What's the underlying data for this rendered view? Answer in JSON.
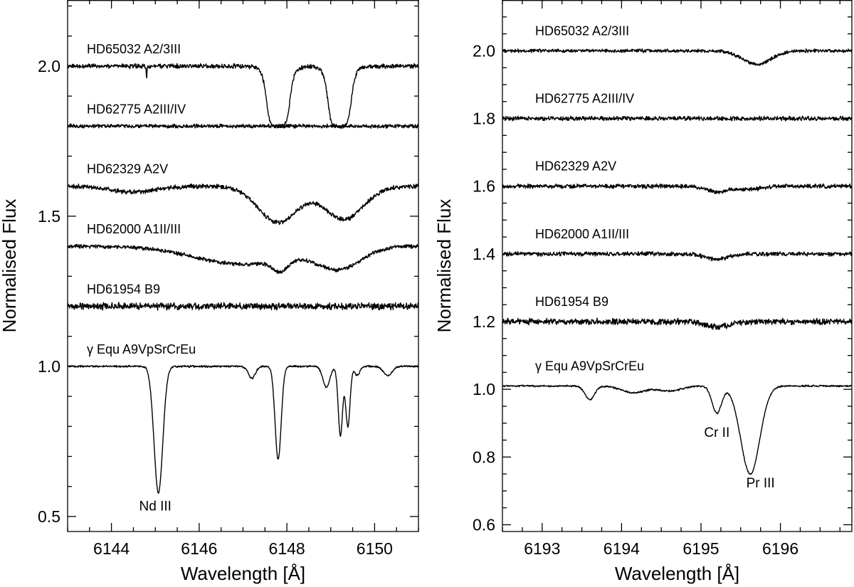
{
  "chart_data": [
    {
      "type": "line",
      "xlabel": "Wavelength [Å]",
      "ylabel": "Normalised Flux",
      "xlim": [
        6143.0,
        6151.0
      ],
      "ylim": [
        0.45,
        2.22
      ],
      "x_ticks_major": [
        6144,
        6146,
        6148,
        6150
      ],
      "x_ticks_minor_step": 0.5,
      "y_ticks_major": [
        0.5,
        1.0,
        1.5,
        2.0
      ],
      "y_ticks_minor_step": 0.1,
      "grid": false,
      "noise_level": 0.005,
      "series": [
        {
          "name": "HD65032 A2/3III",
          "offset": 2.0,
          "noise": 0.006,
          "slope": 0.0,
          "lines": [
            {
              "center": 6147.8,
              "depth": 0.2,
              "width": 0.28,
              "shape": "box"
            },
            {
              "center": 6149.2,
              "depth": 0.2,
              "width": 0.28,
              "shape": "box"
            },
            {
              "center": 6144.8,
              "depth": 0.04,
              "width": 0.01,
              "shape": "gauss"
            }
          ]
        },
        {
          "name": "HD62775 A2III/IV",
          "offset": 1.8,
          "noise": 0.005,
          "slope": 0.0,
          "lines": []
        },
        {
          "name": "HD62329 A2V",
          "offset": 1.6,
          "noise": 0.006,
          "slope": 0.0,
          "lines": [
            {
              "center": 6144.5,
              "depth": 0.02,
              "width": 0.5,
              "shape": "gauss"
            },
            {
              "center": 6147.8,
              "depth": 0.12,
              "width": 0.45,
              "shape": "gauss"
            },
            {
              "center": 6149.3,
              "depth": 0.11,
              "width": 0.45,
              "shape": "gauss"
            }
          ]
        },
        {
          "name": "HD62000 A1II/III",
          "offset": 1.4,
          "noise": 0.005,
          "slope": 0.0,
          "lines": [
            {
              "center": 6147.0,
              "depth": 0.06,
              "width": 1.1,
              "shape": "gauss"
            },
            {
              "center": 6147.85,
              "depth": 0.04,
              "width": 0.18,
              "shape": "gauss"
            },
            {
              "center": 6149.2,
              "depth": 0.07,
              "width": 0.5,
              "shape": "gauss"
            }
          ]
        },
        {
          "name": "HD61954 B9",
          "offset": 1.2,
          "noise": 0.009,
          "slope": 0.0,
          "lines": []
        },
        {
          "name": "γ Equ A9VpSrCrEu",
          "offset": 1.0,
          "noise": 0.0025,
          "slope": 0.0,
          "lines": [
            {
              "center": 6145.07,
              "depth": 0.42,
              "width": 0.1,
              "shape": "gauss"
            },
            {
              "center": 6147.2,
              "depth": 0.04,
              "width": 0.08,
              "shape": "gauss"
            },
            {
              "center": 6147.8,
              "depth": 0.31,
              "width": 0.07,
              "shape": "gauss"
            },
            {
              "center": 6148.9,
              "depth": 0.07,
              "width": 0.08,
              "shape": "gauss"
            },
            {
              "center": 6149.22,
              "depth": 0.23,
              "width": 0.05,
              "shape": "gauss"
            },
            {
              "center": 6149.39,
              "depth": 0.2,
              "width": 0.05,
              "shape": "gauss"
            },
            {
              "center": 6149.6,
              "depth": 0.03,
              "width": 0.06,
              "shape": "gauss"
            },
            {
              "center": 6150.3,
              "depth": 0.03,
              "width": 0.1,
              "shape": "gauss"
            }
          ]
        }
      ],
      "annotations": [
        {
          "text": "Nd III",
          "x": 6145.0,
          "y": 0.52
        }
      ]
    },
    {
      "type": "line",
      "xlabel": "Wavelength [Å]",
      "ylabel": "Normalised Flux",
      "xlim": [
        6192.5,
        6196.9
      ],
      "ylim": [
        0.58,
        2.15
      ],
      "x_ticks_major": [
        6193,
        6194,
        6195,
        6196
      ],
      "x_ticks_minor_step": 0.25,
      "y_ticks_major": [
        0.6,
        0.8,
        1.0,
        1.2,
        1.4,
        1.6,
        1.8,
        2.0
      ],
      "y_ticks_minor_step": 0.05,
      "grid": false,
      "noise_level": 0.005,
      "series": [
        {
          "name": "HD65032 A2/3III",
          "offset": 2.0,
          "noise": 0.004,
          "slope": 0.0,
          "lines": [
            {
              "center": 6195.7,
              "depth": 0.04,
              "width": 0.18,
              "shape": "gauss"
            }
          ]
        },
        {
          "name": "HD62775 A2III/IV",
          "offset": 1.8,
          "noise": 0.005,
          "slope": 0.0,
          "lines": []
        },
        {
          "name": "HD62329 A2V",
          "offset": 1.6,
          "noise": 0.005,
          "slope": 0.0,
          "lines": [
            {
              "center": 6195.2,
              "depth": 0.015,
              "width": 0.15,
              "shape": "gauss"
            },
            {
              "center": 6195.6,
              "depth": 0.01,
              "width": 0.15,
              "shape": "gauss"
            }
          ]
        },
        {
          "name": "HD62000 A1II/III",
          "offset": 1.4,
          "noise": 0.005,
          "slope": 0.0,
          "lines": [
            {
              "center": 6195.2,
              "depth": 0.015,
              "width": 0.15,
              "shape": "gauss"
            }
          ]
        },
        {
          "name": "HD61954 B9",
          "offset": 1.2,
          "noise": 0.007,
          "slope": 0.0,
          "lines": [
            {
              "center": 6195.2,
              "depth": 0.015,
              "width": 0.15,
              "shape": "gauss"
            }
          ]
        },
        {
          "name": "γ Equ A9VpSrCrEu",
          "offset": 1.01,
          "noise": 0.002,
          "slope": 0.0,
          "lines": [
            {
              "center": 6193.6,
              "depth": 0.04,
              "width": 0.06,
              "shape": "gauss"
            },
            {
              "center": 6194.15,
              "depth": 0.02,
              "width": 0.15,
              "shape": "gauss"
            },
            {
              "center": 6194.6,
              "depth": 0.015,
              "width": 0.15,
              "shape": "gauss"
            },
            {
              "center": 6195.2,
              "depth": 0.08,
              "width": 0.06,
              "shape": "gauss"
            },
            {
              "center": 6195.62,
              "depth": 0.26,
              "width": 0.12,
              "shape": "gauss"
            }
          ]
        }
      ],
      "annotations": [
        {
          "text": "Cr II",
          "x": 6195.2,
          "y": 0.86
        },
        {
          "text": "Pr III",
          "x": 6195.75,
          "y": 0.71
        }
      ]
    }
  ]
}
